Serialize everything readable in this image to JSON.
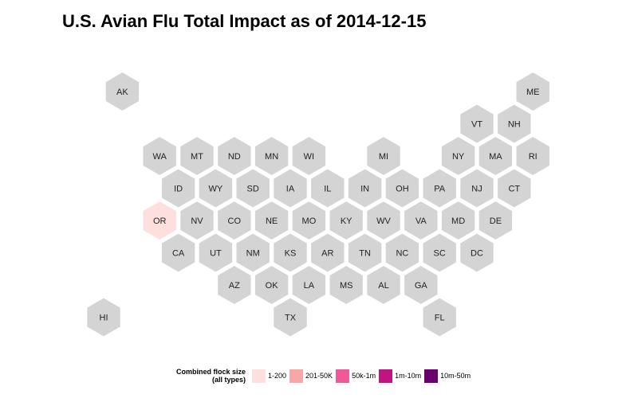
{
  "title": "U.S. Avian Flu Total Impact as of 2014-12-15",
  "colors": {
    "no_data": "#d4d4d4",
    "bin_1": "#fde0dd",
    "bin_2": "#f8a6a8",
    "bin_3": "#f1589a",
    "bin_4": "#c21383",
    "bin_5": "#6a006f"
  },
  "legend": {
    "title_line1": "Combined flock size",
    "title_line2": "(all types)",
    "items": [
      {
        "label": "1-200",
        "color_key": "bin_1"
      },
      {
        "label": "201-50K",
        "color_key": "bin_2"
      },
      {
        "label": "50k-1m",
        "color_key": "bin_3"
      },
      {
        "label": "1m-10m",
        "color_key": "bin_4"
      },
      {
        "label": "10m-50m",
        "color_key": "bin_5"
      }
    ]
  },
  "states": [
    {
      "abbr": "AK",
      "row": 0,
      "col": 1,
      "category": "none"
    },
    {
      "abbr": "ME",
      "row": 0,
      "col": 23,
      "category": "none"
    },
    {
      "abbr": "VT",
      "row": 1,
      "col": 20,
      "category": "none"
    },
    {
      "abbr": "NH",
      "row": 1,
      "col": 22,
      "category": "none"
    },
    {
      "abbr": "WA",
      "row": 2,
      "col": 3,
      "category": "none"
    },
    {
      "abbr": "MT",
      "row": 2,
      "col": 5,
      "category": "none"
    },
    {
      "abbr": "ND",
      "row": 2,
      "col": 7,
      "category": "none"
    },
    {
      "abbr": "MN",
      "row": 2,
      "col": 9,
      "category": "none"
    },
    {
      "abbr": "WI",
      "row": 2,
      "col": 11,
      "category": "none"
    },
    {
      "abbr": "MI",
      "row": 2,
      "col": 15,
      "category": "none"
    },
    {
      "abbr": "NY",
      "row": 2,
      "col": 19,
      "category": "none"
    },
    {
      "abbr": "MA",
      "row": 2,
      "col": 21,
      "category": "none"
    },
    {
      "abbr": "RI",
      "row": 2,
      "col": 23,
      "category": "none"
    },
    {
      "abbr": "ID",
      "row": 3,
      "col": 4,
      "category": "none"
    },
    {
      "abbr": "WY",
      "row": 3,
      "col": 6,
      "category": "none"
    },
    {
      "abbr": "SD",
      "row": 3,
      "col": 8,
      "category": "none"
    },
    {
      "abbr": "IA",
      "row": 3,
      "col": 10,
      "category": "none"
    },
    {
      "abbr": "IL",
      "row": 3,
      "col": 12,
      "category": "none"
    },
    {
      "abbr": "IN",
      "row": 3,
      "col": 14,
      "category": "none"
    },
    {
      "abbr": "OH",
      "row": 3,
      "col": 16,
      "category": "none"
    },
    {
      "abbr": "PA",
      "row": 3,
      "col": 18,
      "category": "none"
    },
    {
      "abbr": "NJ",
      "row": 3,
      "col": 20,
      "category": "none"
    },
    {
      "abbr": "CT",
      "row": 3,
      "col": 22,
      "category": "none"
    },
    {
      "abbr": "OR",
      "row": 4,
      "col": 3,
      "category": "bin_1"
    },
    {
      "abbr": "NV",
      "row": 4,
      "col": 5,
      "category": "none"
    },
    {
      "abbr": "CO",
      "row": 4,
      "col": 7,
      "category": "none"
    },
    {
      "abbr": "NE",
      "row": 4,
      "col": 9,
      "category": "none"
    },
    {
      "abbr": "MO",
      "row": 4,
      "col": 11,
      "category": "none"
    },
    {
      "abbr": "KY",
      "row": 4,
      "col": 13,
      "category": "none"
    },
    {
      "abbr": "WV",
      "row": 4,
      "col": 15,
      "category": "none"
    },
    {
      "abbr": "VA",
      "row": 4,
      "col": 17,
      "category": "none"
    },
    {
      "abbr": "MD",
      "row": 4,
      "col": 19,
      "category": "none"
    },
    {
      "abbr": "DE",
      "row": 4,
      "col": 21,
      "category": "none"
    },
    {
      "abbr": "CA",
      "row": 5,
      "col": 4,
      "category": "none"
    },
    {
      "abbr": "UT",
      "row": 5,
      "col": 6,
      "category": "none"
    },
    {
      "abbr": "NM",
      "row": 5,
      "col": 8,
      "category": "none"
    },
    {
      "abbr": "KS",
      "row": 5,
      "col": 10,
      "category": "none"
    },
    {
      "abbr": "AR",
      "row": 5,
      "col": 12,
      "category": "none"
    },
    {
      "abbr": "TN",
      "row": 5,
      "col": 14,
      "category": "none"
    },
    {
      "abbr": "NC",
      "row": 5,
      "col": 16,
      "category": "none"
    },
    {
      "abbr": "SC",
      "row": 5,
      "col": 18,
      "category": "none"
    },
    {
      "abbr": "DC",
      "row": 5,
      "col": 20,
      "category": "none"
    },
    {
      "abbr": "AZ",
      "row": 6,
      "col": 7,
      "category": "none"
    },
    {
      "abbr": "OK",
      "row": 6,
      "col": 9,
      "category": "none"
    },
    {
      "abbr": "LA",
      "row": 6,
      "col": 11,
      "category": "none"
    },
    {
      "abbr": "MS",
      "row": 6,
      "col": 13,
      "category": "none"
    },
    {
      "abbr": "AL",
      "row": 6,
      "col": 15,
      "category": "none"
    },
    {
      "abbr": "GA",
      "row": 6,
      "col": 17,
      "category": "none"
    },
    {
      "abbr": "HI",
      "row": 7,
      "col": 0,
      "category": "none"
    },
    {
      "abbr": "TX",
      "row": 7,
      "col": 10,
      "category": "none"
    },
    {
      "abbr": "FL",
      "row": 7,
      "col": 18,
      "category": "none"
    }
  ]
}
